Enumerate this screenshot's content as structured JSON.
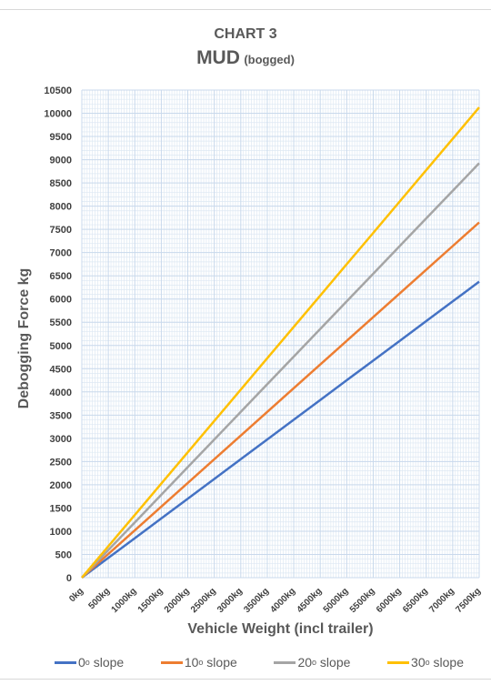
{
  "chart_data": {
    "type": "line",
    "title": "CHART 3",
    "subtitle_main": "MUD",
    "subtitle_note": "(bogged)",
    "xlabel": "Vehicle Weight (incl trailer)",
    "ylabel": "Debogging Force kg",
    "x": [
      0,
      500,
      1000,
      1500,
      2000,
      2500,
      3000,
      3500,
      4000,
      4500,
      5000,
      5500,
      6000,
      6500,
      7000,
      7500
    ],
    "x_tick_labels": [
      "0kg",
      "500kg",
      "1000kg",
      "1500kg",
      "2000kg",
      "2500kg",
      "3000kg",
      "3500kg",
      "4000kg",
      "4500kg",
      "5000kg",
      "5500kg",
      "6000kg",
      "6500kg",
      "7000kg",
      "7500kg"
    ],
    "xlim": [
      0,
      7500
    ],
    "ylim": [
      0,
      10500
    ],
    "y_ticks": [
      0,
      500,
      1000,
      1500,
      2000,
      2500,
      3000,
      3500,
      4000,
      4500,
      5000,
      5500,
      6000,
      6500,
      7000,
      7500,
      8000,
      8500,
      9000,
      9500,
      10000,
      10500
    ],
    "grid": true,
    "legend_position": "bottom",
    "series": [
      {
        "name": "0",
        "suffix": "slope",
        "color": "#4472c4",
        "values": [
          0,
          425,
          850,
          1275,
          1700,
          2125,
          2550,
          2975,
          3400,
          3825,
          4250,
          4675,
          5100,
          5525,
          5950,
          6375
        ]
      },
      {
        "name": "10",
        "suffix": "slope",
        "color": "#ed7d31",
        "values": [
          0,
          510,
          1020,
          1530,
          2040,
          2550,
          3060,
          3570,
          4080,
          4590,
          5100,
          5610,
          6120,
          6630,
          7140,
          7650
        ]
      },
      {
        "name": "20",
        "suffix": "slope",
        "color": "#a5a5a5",
        "values": [
          0,
          595,
          1190,
          1785,
          2380,
          2975,
          3570,
          4165,
          4760,
          5355,
          5950,
          6545,
          7140,
          7735,
          8330,
          8925
        ]
      },
      {
        "name": "30",
        "suffix": "slope",
        "color": "#ffc000",
        "values": [
          0,
          675,
          1350,
          2025,
          2700,
          3375,
          4050,
          4725,
          5400,
          6075,
          6750,
          7425,
          8100,
          8775,
          9450,
          10125
        ]
      }
    ]
  }
}
